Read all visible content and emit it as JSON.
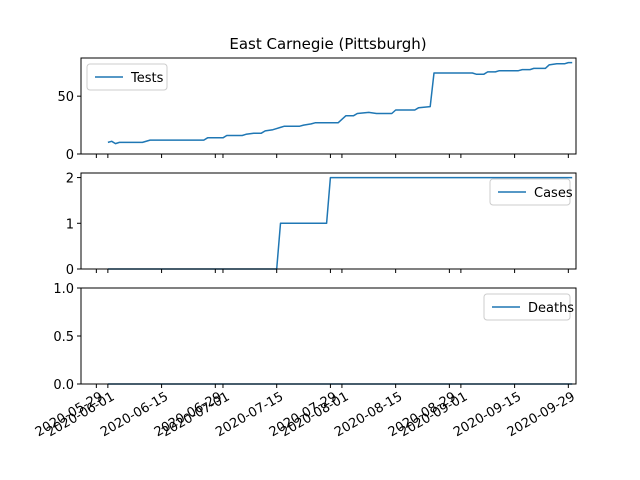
{
  "chart_data": {
    "type": "line",
    "title": "East Carnegie (Pittsburgh)",
    "line_color": "#1f77b4",
    "x_tick_labels": [
      "2020-05-29",
      "2020-06-01",
      "2020-06-15",
      "2020-06-29",
      "2020-07-01",
      "2020-07-15",
      "2020-07-29",
      "2020-08-01",
      "2020-08-15",
      "2020-08-29",
      "2020-09-01",
      "2020-09-15",
      "2020-09-29"
    ],
    "xlim": [
      "2020-05-25",
      "2020-10-01"
    ],
    "panels": [
      {
        "name": "Tests",
        "legend": "upper left",
        "ylim": [
          0,
          83
        ],
        "y_ticks": [
          0,
          50
        ],
        "y_tick_labels": [
          "0",
          "50"
        ],
        "points": [
          [
            "2020-06-01",
            10
          ],
          [
            "2020-06-02",
            11
          ],
          [
            "2020-06-03",
            9
          ],
          [
            "2020-06-04",
            10
          ],
          [
            "2020-06-10",
            10
          ],
          [
            "2020-06-12",
            12
          ],
          [
            "2020-06-26",
            12
          ],
          [
            "2020-06-27",
            14
          ],
          [
            "2020-07-01",
            14
          ],
          [
            "2020-07-02",
            16
          ],
          [
            "2020-07-06",
            16
          ],
          [
            "2020-07-07",
            17
          ],
          [
            "2020-07-09",
            18
          ],
          [
            "2020-07-11",
            18
          ],
          [
            "2020-07-12",
            20
          ],
          [
            "2020-07-14",
            21
          ],
          [
            "2020-07-16",
            23
          ],
          [
            "2020-07-17",
            24
          ],
          [
            "2020-07-21",
            24
          ],
          [
            "2020-07-22",
            25
          ],
          [
            "2020-07-24",
            26
          ],
          [
            "2020-07-25",
            27
          ],
          [
            "2020-07-31",
            27
          ],
          [
            "2020-08-02",
            33
          ],
          [
            "2020-08-04",
            33
          ],
          [
            "2020-08-05",
            35
          ],
          [
            "2020-08-08",
            36
          ],
          [
            "2020-08-10",
            35
          ],
          [
            "2020-08-14",
            35
          ],
          [
            "2020-08-15",
            38
          ],
          [
            "2020-08-20",
            38
          ],
          [
            "2020-08-21",
            40
          ],
          [
            "2020-08-24",
            41
          ],
          [
            "2020-08-25",
            70
          ],
          [
            "2020-09-04",
            70
          ],
          [
            "2020-09-05",
            69
          ],
          [
            "2020-09-07",
            69
          ],
          [
            "2020-09-08",
            71
          ],
          [
            "2020-09-10",
            71
          ],
          [
            "2020-09-11",
            72
          ],
          [
            "2020-09-16",
            72
          ],
          [
            "2020-09-17",
            73
          ],
          [
            "2020-09-19",
            73
          ],
          [
            "2020-09-20",
            74
          ],
          [
            "2020-09-23",
            74
          ],
          [
            "2020-09-24",
            77
          ],
          [
            "2020-09-26",
            78
          ],
          [
            "2020-09-28",
            78
          ],
          [
            "2020-09-29",
            79
          ],
          [
            "2020-09-30",
            79
          ]
        ]
      },
      {
        "name": "Cases",
        "legend": "upper right",
        "ylim": [
          0,
          2.1
        ],
        "y_ticks": [
          0,
          1,
          2
        ],
        "y_tick_labels": [
          "0",
          "1",
          "2"
        ],
        "points": [
          [
            "2020-06-01",
            0
          ],
          [
            "2020-07-15",
            0
          ],
          [
            "2020-07-16",
            1
          ],
          [
            "2020-07-28",
            1
          ],
          [
            "2020-07-29",
            2
          ],
          [
            "2020-09-30",
            2
          ]
        ]
      },
      {
        "name": "Deaths",
        "legend": "upper right",
        "ylim": [
          0,
          1
        ],
        "y_ticks": [
          0,
          0.5,
          1
        ],
        "y_tick_labels": [
          "0.0",
          "0.5",
          "1.0"
        ],
        "points": [
          [
            "2020-06-01",
            0
          ],
          [
            "2020-09-30",
            0
          ]
        ]
      }
    ]
  }
}
